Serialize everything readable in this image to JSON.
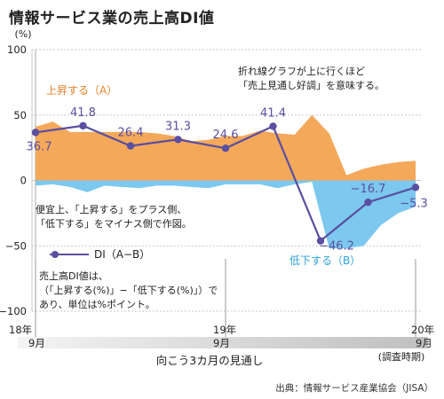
{
  "title": "情報サービス業の売上高DI値",
  "source": "出典：情報サービス産業協会（JISA）",
  "chart_data": {
    "type": "area",
    "y_unit": "(%)",
    "ylim": [
      -100,
      100
    ],
    "y_ticks": [
      "100",
      "50",
      "0",
      "−50",
      "−100"
    ],
    "x_period_labels": [
      {
        "year": "18年",
        "month": "9月"
      },
      {
        "year": "19年",
        "month": "9月"
      },
      {
        "year": "20年",
        "month": "9月"
      }
    ],
    "x_note": "(調査時期)",
    "x_axis_title": "向こう3カ月の見通し",
    "notes": {
      "top_right": [
        "折れ線グラフが上に行くほど",
        "「売上見通し好調」を意味する。"
      ],
      "middle_left": [
        "便宜上、「上昇する」をプラス側、",
        "「低下する」をマイナス側で作図。"
      ],
      "bottom_left": [
        "売上高DI値は、",
        "（「上昇する(%)」−「低下する(%)」）で",
        "あり、単位は%ポイント。"
      ]
    },
    "series": [
      {
        "name": "上昇する（A）",
        "color": "#f4a85a",
        "values": [
          41,
          45,
          37,
          37,
          37,
          37,
          37,
          36,
          34,
          30,
          31,
          34,
          34,
          38,
          36,
          35,
          50,
          36,
          4,
          9,
          12,
          14,
          15
        ]
      },
      {
        "name": "低下する（B）",
        "color": "#7cc8ee",
        "values": [
          -4,
          -3,
          -5,
          -9,
          -4,
          -5,
          -6,
          -4,
          -4,
          -5,
          -6,
          -3,
          -3,
          -3,
          -6,
          -3,
          -1,
          -52,
          -52,
          -50,
          -34,
          -25,
          -20
        ]
      },
      {
        "name": "DI（A−B）",
        "color": "#5a4fa0",
        "points": [
          {
            "i": 0,
            "value": 36.7
          },
          {
            "i": 3,
            "value": 41.8
          },
          {
            "i": 6,
            "value": 26.4
          },
          {
            "i": 9,
            "value": 31.3
          },
          {
            "i": 12,
            "value": 24.6
          },
          {
            "i": 15,
            "value": 41.4
          },
          {
            "i": 18,
            "value": -46.2
          },
          {
            "i": 21,
            "value": -16.7
          },
          {
            "i": 24,
            "value": -5.3
          }
        ],
        "data_labels": [
          "36.7",
          "41.8",
          "26.4",
          "31.3",
          "24.6",
          "41.4",
          "−46.2",
          "−16.7",
          "−5.3"
        ]
      }
    ],
    "colors": {
      "line": "#5a4fa0",
      "up_label": "#e8832b",
      "down_label": "#2aa3d8",
      "axis_band": "#cccccc"
    }
  }
}
